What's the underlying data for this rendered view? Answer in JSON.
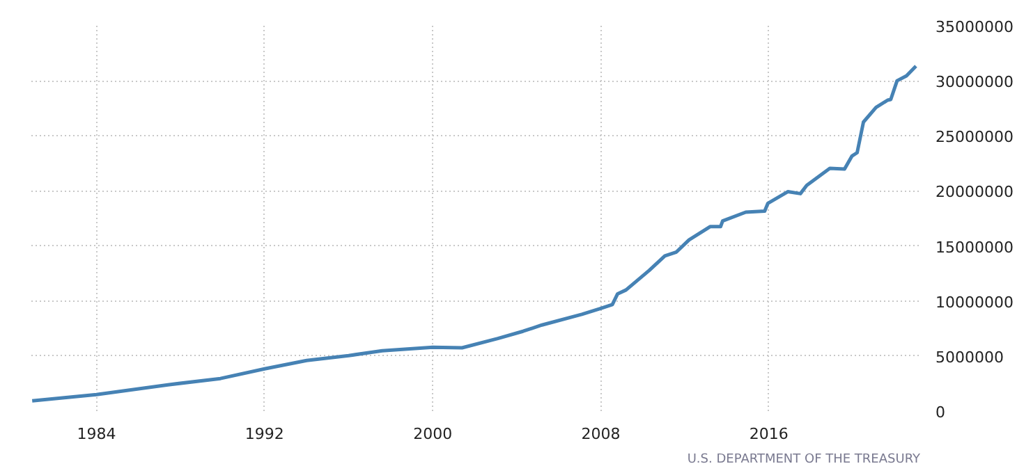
{
  "chart_data": {
    "type": "line",
    "x": [
      1980.94,
      1984,
      1987.4,
      1989.9,
      1992,
      1994,
      1996,
      1997.6,
      2000,
      2001.4,
      2003.1,
      2004.3,
      2005.2,
      2007.1,
      2008,
      2008.55,
      2008.8,
      2009.2,
      2010.3,
      2011.05,
      2011.6,
      2012.2,
      2013.2,
      2013.7,
      2013.8,
      2014.9,
      2015.8,
      2015.95,
      2016.9,
      2017.5,
      2017.8,
      2018.9,
      2019.6,
      2019.95,
      2020.2,
      2020.5,
      2021.1,
      2021.65,
      2021.8,
      2022.1,
      2022.55,
      2023.0
    ],
    "series": [
      {
        "color": "#4682b4",
        "values": [
          930000,
          1500000,
          2390000,
          2960000,
          3840000,
          4600000,
          5040000,
          5480000,
          5790000,
          5750000,
          6590000,
          7250000,
          7820000,
          8790000,
          9330000,
          9680000,
          10650000,
          11000000,
          12770000,
          14100000,
          14450000,
          15550000,
          16750000,
          16750000,
          17270000,
          18070000,
          18160000,
          18870000,
          19930000,
          19750000,
          20500000,
          22050000,
          21980000,
          23160000,
          23470000,
          26250000,
          27580000,
          28240000,
          28300000,
          30000000,
          30450000,
          31330000
        ]
      }
    ],
    "xlim": [
      1980.9,
      2023.2
    ],
    "xticks": [
      1984,
      1992,
      2000,
      2008,
      2016
    ],
    "ylim": [
      0,
      35000000
    ],
    "yticks": [
      0,
      5000000,
      10000000,
      15000000,
      20000000,
      25000000,
      30000000,
      35000000
    ],
    "grid": true,
    "line_style": "solid",
    "annotations": [
      "U.S. DEPARTMENT OF THE TREASURY"
    ]
  }
}
